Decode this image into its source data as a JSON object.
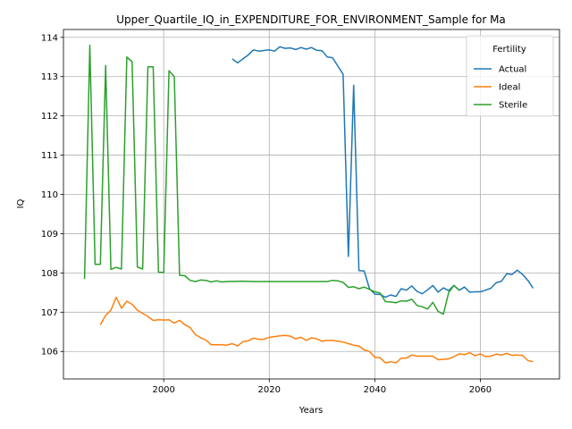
{
  "chart_data": {
    "type": "line",
    "title": "Upper_Quartile_IQ_in_EXPENDITURE_FOR_ENVIRONMENT_Sample for Ma",
    "xlabel": "Years",
    "ylabel": "IQ",
    "xlim": [
      1981,
      2075
    ],
    "ylim": [
      105.3,
      114.2
    ],
    "xticks": [
      2000,
      2020,
      2040,
      2060
    ],
    "yticks": [
      106,
      107,
      108,
      109,
      110,
      111,
      112,
      113,
      114
    ],
    "grid": true,
    "legend": {
      "title": "Fertility",
      "position": "top-right"
    },
    "series": [
      {
        "name": "Actual",
        "color": "#1f77b4",
        "x": [
          2013,
          2014,
          2016,
          2017,
          2018,
          2020,
          2021,
          2022,
          2023,
          2024,
          2025,
          2026,
          2027,
          2028,
          2029,
          2030,
          2031,
          2032,
          2034,
          2035,
          2036,
          2037,
          2038,
          2039,
          2040,
          2041,
          2042,
          2043,
          2044,
          2045,
          2046,
          2047,
          2048,
          2049,
          2050,
          2051,
          2052,
          2053,
          2054,
          2055,
          2056,
          2057,
          2058,
          2059,
          2060,
          2061,
          2062,
          2063,
          2064,
          2065,
          2066,
          2067,
          2068,
          2069,
          2070
        ],
        "y": [
          113.45,
          113.35,
          113.55,
          113.68,
          113.65,
          113.68,
          113.65,
          113.76,
          113.72,
          113.73,
          113.69,
          113.74,
          113.7,
          113.74,
          113.67,
          113.66,
          113.5,
          113.48,
          113.06,
          108.42,
          112.78,
          108.06,
          108.05,
          107.6,
          107.46,
          107.45,
          107.38,
          107.44,
          107.4,
          107.6,
          107.56,
          107.67,
          107.53,
          107.47,
          107.57,
          107.68,
          107.51,
          107.62,
          107.55,
          107.68,
          107.56,
          107.64,
          107.51,
          107.52,
          107.52,
          107.56,
          107.61,
          107.75,
          107.79,
          107.98,
          107.96,
          108.07,
          107.96,
          107.81,
          107.61
        ]
      },
      {
        "name": "Ideal",
        "color": "#ff7f0e",
        "x": [
          1988,
          1989,
          1990,
          1991,
          1992,
          1993,
          1994,
          1995,
          1996,
          1997,
          1998,
          1999,
          2000,
          2001,
          2002,
          2003,
          2004,
          2005,
          2006,
          2007,
          2008,
          2009,
          2010,
          2011,
          2012,
          2013,
          2014,
          2015,
          2016,
          2017,
          2018,
          2019,
          2020,
          2021,
          2022,
          2023,
          2024,
          2025,
          2026,
          2027,
          2028,
          2029,
          2030,
          2031,
          2032,
          2033,
          2034,
          2035,
          2036,
          2037,
          2038,
          2039,
          2040,
          2041,
          2042,
          2043,
          2044,
          2045,
          2046,
          2047,
          2048,
          2049,
          2050,
          2051,
          2052,
          2053,
          2054,
          2055,
          2056,
          2057,
          2058,
          2059,
          2060,
          2061,
          2062,
          2063,
          2064,
          2065,
          2066,
          2067,
          2068,
          2069,
          2070
        ],
        "y": [
          106.68,
          106.92,
          107.05,
          107.38,
          107.1,
          107.28,
          107.2,
          107.05,
          106.97,
          106.89,
          106.79,
          106.81,
          106.8,
          106.81,
          106.72,
          106.79,
          106.68,
          106.61,
          106.43,
          106.35,
          106.29,
          106.17,
          106.17,
          106.17,
          106.16,
          106.2,
          106.14,
          106.25,
          106.27,
          106.34,
          106.31,
          106.31,
          106.36,
          106.38,
          106.4,
          106.41,
          106.39,
          106.32,
          106.36,
          106.28,
          106.35,
          106.32,
          106.26,
          106.28,
          106.28,
          106.26,
          106.24,
          106.2,
          106.16,
          106.14,
          106.04,
          106.0,
          105.85,
          105.84,
          105.71,
          105.74,
          105.71,
          105.83,
          105.83,
          105.91,
          105.88,
          105.88,
          105.88,
          105.88,
          105.79,
          105.8,
          105.81,
          105.87,
          105.94,
          105.92,
          105.97,
          105.89,
          105.94,
          105.87,
          105.88,
          105.93,
          105.91,
          105.95,
          105.9,
          105.91,
          105.9,
          105.77,
          105.74
        ]
      },
      {
        "name": "Sterile",
        "color": "#2ca02c",
        "x": [
          1985,
          1986,
          1987,
          1988,
          1989,
          1990,
          1991,
          1992,
          1993,
          1994,
          1995,
          1996,
          1997,
          1998,
          1999,
          2000,
          2001,
          2002,
          2003,
          2004,
          2005,
          2006,
          2007,
          2008,
          2009,
          2010,
          2011,
          2012,
          2015,
          2017,
          2020,
          2025,
          2031,
          2032,
          2033,
          2034,
          2035,
          2036,
          2037,
          2038,
          2039,
          2040,
          2041,
          2042,
          2043,
          2044,
          2045,
          2046,
          2047,
          2048,
          2049,
          2050,
          2051,
          2052,
          2053,
          2054,
          2055,
          2056
        ],
        "y": [
          107.85,
          113.8,
          108.22,
          108.22,
          113.28,
          108.09,
          108.14,
          108.1,
          113.5,
          113.38,
          108.15,
          108.1,
          113.25,
          113.25,
          108.02,
          108.01,
          113.15,
          113.0,
          107.94,
          107.93,
          107.81,
          107.78,
          107.82,
          107.81,
          107.77,
          107.8,
          107.77,
          107.78,
          107.79,
          107.78,
          107.78,
          107.78,
          107.78,
          107.81,
          107.8,
          107.76,
          107.63,
          107.65,
          107.6,
          107.64,
          107.58,
          107.52,
          107.49,
          107.27,
          107.26,
          107.24,
          107.29,
          107.28,
          107.33,
          107.17,
          107.14,
          107.08,
          107.25,
          107.02,
          106.95,
          107.5,
          107.68,
          107.56
        ]
      }
    ]
  }
}
